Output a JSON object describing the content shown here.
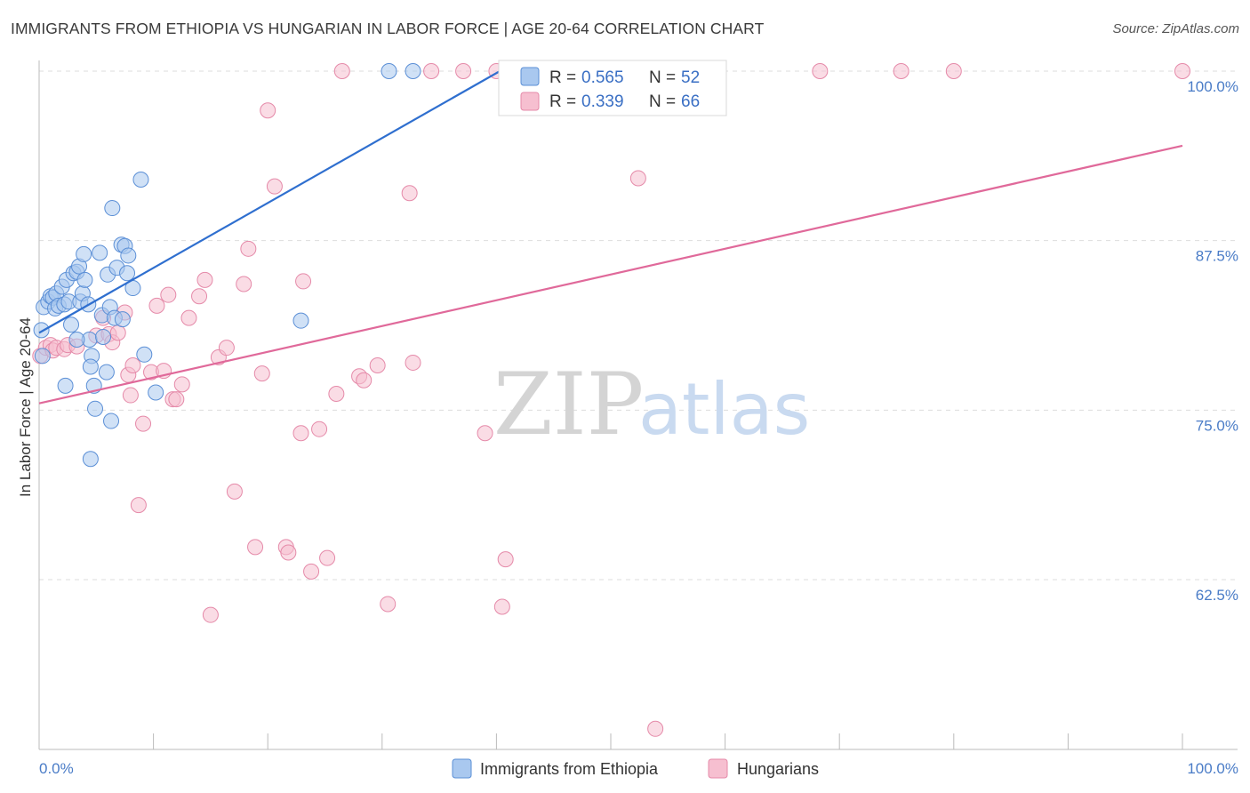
{
  "title": "IMMIGRANTS FROM ETHIOPIA VS HUNGARIAN IN LABOR FORCE | AGE 20-64 CORRELATION CHART",
  "source": "Source: ZipAtlas.com",
  "watermark": {
    "zip": "ZIP",
    "atlas": "atlas"
  },
  "colors": {
    "blue_fill": "#a9c8ef",
    "blue_stroke": "#5b8fd6",
    "blue_line": "#2f6fcf",
    "pink_fill": "#f6bfd0",
    "pink_stroke": "#e58aa9",
    "pink_line": "#e0699a",
    "grid": "#dddddd",
    "tick_label": "#4a7cc7"
  },
  "legend_top": {
    "rows": [
      {
        "r_label": "R = ",
        "r_value": "0.565",
        "n_label": "N = ",
        "n_value": "52"
      },
      {
        "r_label": "R = ",
        "r_value": "0.339",
        "n_label": "N = ",
        "n_value": "66"
      }
    ]
  },
  "chart_data": {
    "type": "scatter",
    "title": "IMMIGRANTS FROM ETHIOPIA VS HUNGARIAN IN LABOR FORCE | AGE 20-64 CORRELATION CHART",
    "xlabel": "",
    "ylabel": "In Labor Force | Age 20-64",
    "xlim": [
      0,
      100
    ],
    "ylim": [
      50,
      100
    ],
    "x_tick_labels": [
      "0.0%",
      "100.0%"
    ],
    "y_ticks": [
      62.5,
      75.0,
      87.5,
      100.0
    ],
    "y_tick_labels": [
      "62.5%",
      "75.0%",
      "87.5%",
      "100.0%"
    ],
    "grid": true,
    "legend": [
      "Immigrants from Ethiopia",
      "Hungarians"
    ],
    "series": [
      {
        "name": "Immigrants from Ethiopia",
        "R": 0.565,
        "N": 52,
        "trend": {
          "x": [
            0,
            40.3
          ],
          "y": [
            80.7,
            100.0
          ]
        },
        "points": [
          [
            0.2,
            80.9
          ],
          [
            0.3,
            79.0
          ],
          [
            0.4,
            82.6
          ],
          [
            0.8,
            83.0
          ],
          [
            1.0,
            83.4
          ],
          [
            1.2,
            83.3
          ],
          [
            1.4,
            82.5
          ],
          [
            1.5,
            83.6
          ],
          [
            1.7,
            82.7
          ],
          [
            2.0,
            84.1
          ],
          [
            2.2,
            82.8
          ],
          [
            2.4,
            84.6
          ],
          [
            2.6,
            83.0
          ],
          [
            2.8,
            81.3
          ],
          [
            3.0,
            85.1
          ],
          [
            3.3,
            85.2
          ],
          [
            3.5,
            85.6
          ],
          [
            3.6,
            83.0
          ],
          [
            3.8,
            83.6
          ],
          [
            3.9,
            86.5
          ],
          [
            4.0,
            84.6
          ],
          [
            4.3,
            82.8
          ],
          [
            4.4,
            80.2
          ],
          [
            4.6,
            79.0
          ],
          [
            4.5,
            78.2
          ],
          [
            4.9,
            75.1
          ],
          [
            5.3,
            86.6
          ],
          [
            5.5,
            82.0
          ],
          [
            5.6,
            80.4
          ],
          [
            5.9,
            77.8
          ],
          [
            6.0,
            85.0
          ],
          [
            6.2,
            82.6
          ],
          [
            6.3,
            74.2
          ],
          [
            6.4,
            89.9
          ],
          [
            6.6,
            81.8
          ],
          [
            6.8,
            85.5
          ],
          [
            7.2,
            87.2
          ],
          [
            7.3,
            81.7
          ],
          [
            7.5,
            87.1
          ],
          [
            7.7,
            85.1
          ],
          [
            7.8,
            86.4
          ],
          [
            8.2,
            84.0
          ],
          [
            8.9,
            92.0
          ],
          [
            9.2,
            79.1
          ],
          [
            10.2,
            76.3
          ],
          [
            22.9,
            81.6
          ],
          [
            30.6,
            100.0
          ],
          [
            32.7,
            100.0
          ],
          [
            3.3,
            80.2
          ],
          [
            2.3,
            76.8
          ],
          [
            4.8,
            76.8
          ],
          [
            4.5,
            71.4
          ]
        ]
      },
      {
        "name": "Hungarians",
        "R": 0.339,
        "N": 66,
        "trend": {
          "x": [
            0,
            100
          ],
          "y": [
            75.5,
            94.5
          ]
        },
        "points": [
          [
            0.1,
            79.0
          ],
          [
            0.6,
            79.6
          ],
          [
            1.0,
            79.8
          ],
          [
            1.2,
            79.4
          ],
          [
            1.5,
            79.6
          ],
          [
            2.2,
            79.5
          ],
          [
            2.5,
            79.8
          ],
          [
            3.3,
            79.7
          ],
          [
            5.0,
            80.5
          ],
          [
            5.6,
            81.8
          ],
          [
            6.1,
            80.6
          ],
          [
            6.4,
            80.0
          ],
          [
            6.9,
            80.7
          ],
          [
            7.5,
            82.2
          ],
          [
            7.8,
            77.6
          ],
          [
            8.0,
            76.1
          ],
          [
            8.2,
            78.3
          ],
          [
            8.7,
            68.0
          ],
          [
            9.1,
            74.0
          ],
          [
            9.8,
            77.8
          ],
          [
            10.3,
            82.7
          ],
          [
            10.9,
            77.9
          ],
          [
            11.3,
            83.5
          ],
          [
            11.7,
            75.8
          ],
          [
            12.0,
            75.8
          ],
          [
            12.5,
            76.9
          ],
          [
            13.1,
            81.8
          ],
          [
            14.0,
            83.4
          ],
          [
            14.5,
            84.6
          ],
          [
            15.0,
            59.9
          ],
          [
            15.7,
            78.9
          ],
          [
            16.4,
            79.6
          ],
          [
            17.1,
            69.0
          ],
          [
            17.9,
            84.3
          ],
          [
            18.3,
            86.9
          ],
          [
            18.9,
            64.9
          ],
          [
            19.5,
            77.7
          ],
          [
            20.0,
            97.1
          ],
          [
            20.6,
            91.5
          ],
          [
            21.6,
            64.9
          ],
          [
            21.8,
            64.5
          ],
          [
            22.9,
            73.3
          ],
          [
            23.1,
            84.5
          ],
          [
            23.8,
            63.1
          ],
          [
            24.5,
            73.6
          ],
          [
            25.2,
            64.1
          ],
          [
            26.0,
            76.2
          ],
          [
            26.5,
            100.0
          ],
          [
            28.0,
            77.5
          ],
          [
            28.4,
            77.2
          ],
          [
            29.6,
            78.3
          ],
          [
            30.5,
            60.7
          ],
          [
            32.4,
            91.0
          ],
          [
            32.7,
            78.5
          ],
          [
            34.3,
            100.0
          ],
          [
            37.1,
            100.0
          ],
          [
            39.0,
            73.3
          ],
          [
            40.5,
            60.5
          ],
          [
            40.8,
            64.0
          ],
          [
            52.4,
            92.1
          ],
          [
            53.9,
            51.5
          ],
          [
            68.3,
            100.0
          ],
          [
            75.4,
            100.0
          ],
          [
            80.0,
            100.0
          ],
          [
            100.0,
            100.0
          ],
          [
            40.0,
            100.0
          ]
        ]
      }
    ]
  }
}
